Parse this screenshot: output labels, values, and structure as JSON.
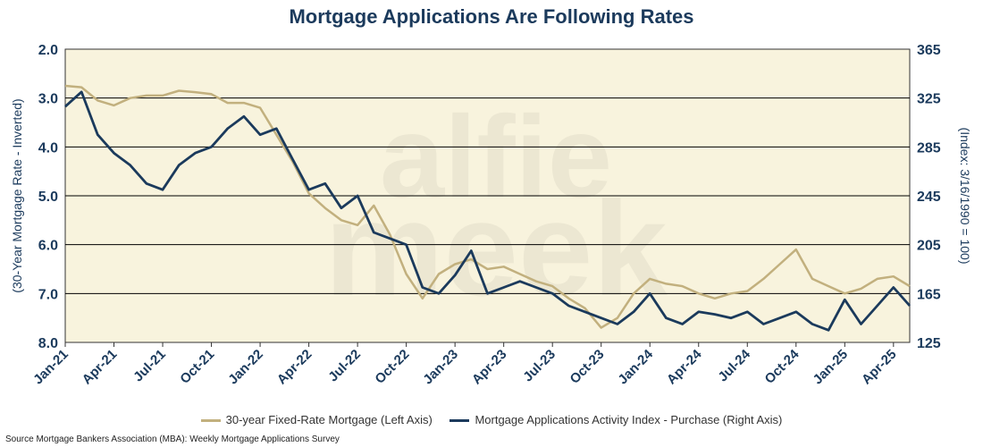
{
  "title": "Mortgage Applications Are Following Rates",
  "source": "Source Mortgage Bankers Association (MBA): Weekly Mortgage Applications Survey",
  "chart_data": {
    "type": "line",
    "title": "Mortgage Applications Are Following Rates",
    "left_axis": {
      "label": "(30-Year Mortgage Rate - Inverted)",
      "range": [
        2.0,
        8.0
      ],
      "inverted": true,
      "ticks": [
        "2.0",
        "3.0",
        "4.0",
        "5.0",
        "6.0",
        "7.0",
        "8.0"
      ]
    },
    "right_axis": {
      "label": "(Index: 3/16/1990 = 100)",
      "range": [
        125,
        365
      ],
      "ticks": [
        "365",
        "325",
        "285",
        "245",
        "205",
        "165",
        "125"
      ]
    },
    "x_axis": {
      "range": [
        "2021-01",
        "2025-05"
      ],
      "ticks": [
        "Jan-21",
        "Apr-21",
        "Jul-21",
        "Oct-21",
        "Jan-22",
        "Apr-22",
        "Jul-22",
        "Oct-22",
        "Jan-23",
        "Apr-23",
        "Jul-23",
        "Oct-23",
        "Jan-24",
        "Apr-24",
        "Jul-24",
        "Oct-24",
        "Jan-25",
        "Apr-25"
      ]
    },
    "grid": "horizontal",
    "legend_position": "bottom",
    "series": [
      {
        "name": "30-year Fixed-Rate Mortgage (Left Axis)",
        "axis": "left",
        "color": "#c2b07e",
        "points": [
          [
            "2021-01",
            2.75
          ],
          [
            "2021-02",
            2.78
          ],
          [
            "2021-03",
            3.05
          ],
          [
            "2021-04",
            3.15
          ],
          [
            "2021-05",
            3.0
          ],
          [
            "2021-06",
            2.95
          ],
          [
            "2021-07",
            2.95
          ],
          [
            "2021-08",
            2.85
          ],
          [
            "2021-09",
            2.88
          ],
          [
            "2021-10",
            2.92
          ],
          [
            "2021-11",
            3.1
          ],
          [
            "2021-12",
            3.1
          ],
          [
            "2022-01",
            3.2
          ],
          [
            "2022-02",
            3.75
          ],
          [
            "2022-03",
            4.3
          ],
          [
            "2022-04",
            4.95
          ],
          [
            "2022-05",
            5.25
          ],
          [
            "2022-06",
            5.5
          ],
          [
            "2022-07",
            5.6
          ],
          [
            "2022-08",
            5.2
          ],
          [
            "2022-09",
            5.8
          ],
          [
            "2022-10",
            6.6
          ],
          [
            "2022-11",
            7.1
          ],
          [
            "2022-12",
            6.6
          ],
          [
            "2023-01",
            6.4
          ],
          [
            "2023-02",
            6.3
          ],
          [
            "2023-03",
            6.5
          ],
          [
            "2023-04",
            6.45
          ],
          [
            "2023-05",
            6.6
          ],
          [
            "2023-06",
            6.75
          ],
          [
            "2023-07",
            6.85
          ],
          [
            "2023-08",
            7.1
          ],
          [
            "2023-09",
            7.3
          ],
          [
            "2023-10",
            7.7
          ],
          [
            "2023-11",
            7.5
          ],
          [
            "2023-12",
            7.0
          ],
          [
            "2024-01",
            6.7
          ],
          [
            "2024-02",
            6.8
          ],
          [
            "2024-03",
            6.85
          ],
          [
            "2024-04",
            7.0
          ],
          [
            "2024-05",
            7.1
          ],
          [
            "2024-06",
            7.0
          ],
          [
            "2024-07",
            6.95
          ],
          [
            "2024-08",
            6.7
          ],
          [
            "2024-09",
            6.4
          ],
          [
            "2024-10",
            6.1
          ],
          [
            "2024-11",
            6.7
          ],
          [
            "2024-12",
            6.85
          ],
          [
            "2025-01",
            7.0
          ],
          [
            "2025-02",
            6.9
          ],
          [
            "2025-03",
            6.7
          ],
          [
            "2025-04",
            6.65
          ],
          [
            "2025-05",
            6.85
          ]
        ]
      },
      {
        "name": "Mortgage Applications Activity Index - Purchase (Right Axis)",
        "axis": "right",
        "color": "#1b3a5c",
        "points": [
          [
            "2021-01",
            318
          ],
          [
            "2021-02",
            330
          ],
          [
            "2021-03",
            295
          ],
          [
            "2021-04",
            280
          ],
          [
            "2021-05",
            270
          ],
          [
            "2021-06",
            255
          ],
          [
            "2021-07",
            250
          ],
          [
            "2021-08",
            270
          ],
          [
            "2021-09",
            280
          ],
          [
            "2021-10",
            285
          ],
          [
            "2021-11",
            300
          ],
          [
            "2021-12",
            310
          ],
          [
            "2022-01",
            295
          ],
          [
            "2022-02",
            300
          ],
          [
            "2022-03",
            275
          ],
          [
            "2022-04",
            250
          ],
          [
            "2022-05",
            255
          ],
          [
            "2022-06",
            235
          ],
          [
            "2022-07",
            245
          ],
          [
            "2022-08",
            215
          ],
          [
            "2022-09",
            210
          ],
          [
            "2022-10",
            205
          ],
          [
            "2022-11",
            170
          ],
          [
            "2022-12",
            165
          ],
          [
            "2023-01",
            180
          ],
          [
            "2023-02",
            200
          ],
          [
            "2023-03",
            165
          ],
          [
            "2023-04",
            170
          ],
          [
            "2023-05",
            175
          ],
          [
            "2023-06",
            170
          ],
          [
            "2023-07",
            165
          ],
          [
            "2023-08",
            155
          ],
          [
            "2023-09",
            150
          ],
          [
            "2023-10",
            145
          ],
          [
            "2023-11",
            140
          ],
          [
            "2023-12",
            150
          ],
          [
            "2024-01",
            165
          ],
          [
            "2024-02",
            145
          ],
          [
            "2024-03",
            140
          ],
          [
            "2024-04",
            150
          ],
          [
            "2024-05",
            148
          ],
          [
            "2024-06",
            145
          ],
          [
            "2024-07",
            150
          ],
          [
            "2024-08",
            140
          ],
          [
            "2024-09",
            145
          ],
          [
            "2024-10",
            150
          ],
          [
            "2024-11",
            140
          ],
          [
            "2024-12",
            135
          ],
          [
            "2025-01",
            160
          ],
          [
            "2025-02",
            140
          ],
          [
            "2025-03",
            155
          ],
          [
            "2025-04",
            170
          ],
          [
            "2025-05",
            155
          ]
        ]
      }
    ]
  },
  "colors": {
    "plot_background": "#f8f3dd",
    "axis_text": "#1b3a5c",
    "gridline": "#000000"
  }
}
